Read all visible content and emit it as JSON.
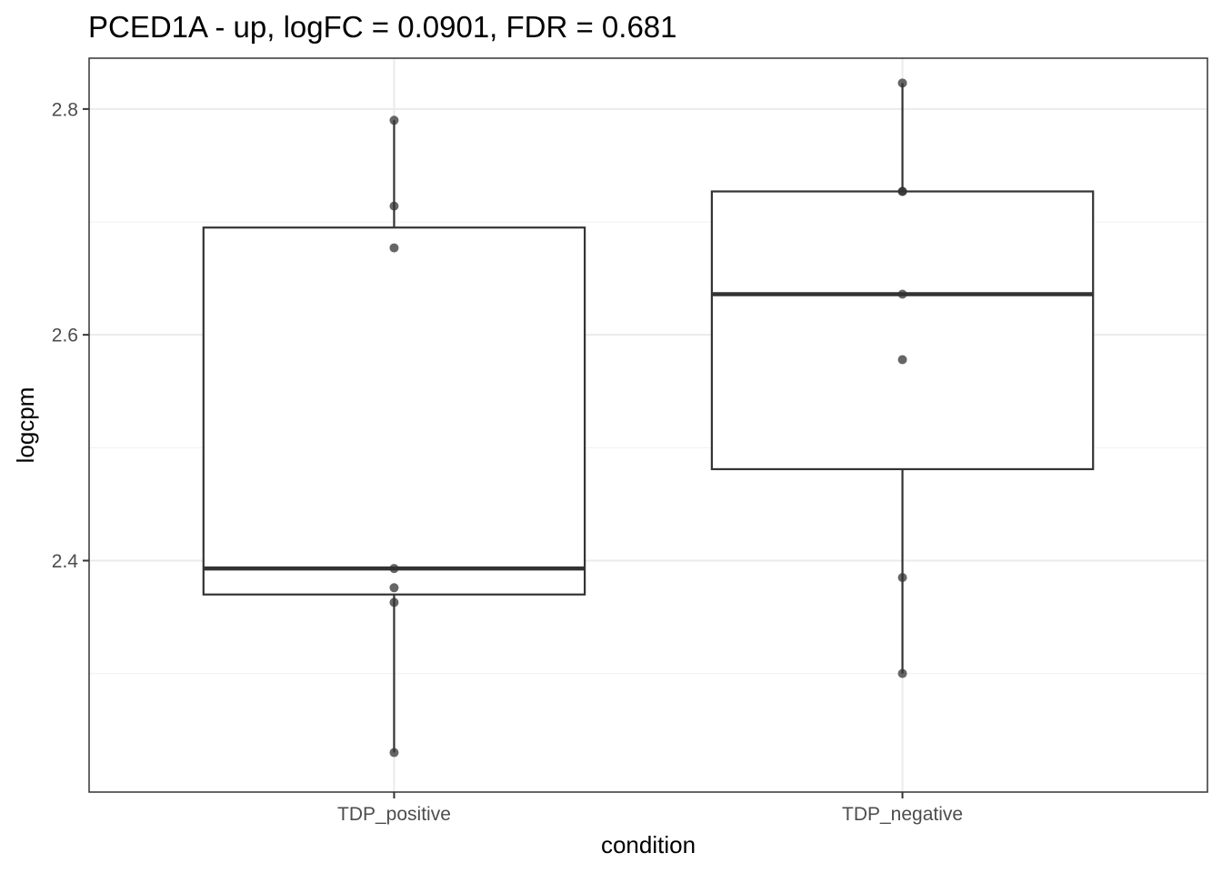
{
  "chart_data": {
    "type": "boxplot",
    "title": "PCED1A - up, logFC = 0.0901, FDR = 0.681",
    "xlabel": "condition",
    "ylabel": "logcpm",
    "categories": [
      "TDP_positive",
      "TDP_negative"
    ],
    "ylim": [
      2.195,
      2.845
    ],
    "yticks": [
      2.4,
      2.6,
      2.8
    ],
    "grid": true,
    "boxes": [
      {
        "category": "TDP_positive",
        "whisker_low": 2.23,
        "q1": 2.37,
        "median": 2.393,
        "q3": 2.695,
        "whisker_high": 2.79
      },
      {
        "category": "TDP_negative",
        "whisker_low": 2.3,
        "q1": 2.481,
        "median": 2.636,
        "q3": 2.727,
        "whisker_high": 2.823
      }
    ],
    "points": [
      {
        "category": "TDP_positive",
        "y": 2.79
      },
      {
        "category": "TDP_positive",
        "y": 2.714
      },
      {
        "category": "TDP_positive",
        "y": 2.677
      },
      {
        "category": "TDP_positive",
        "y": 2.393
      },
      {
        "category": "TDP_positive",
        "y": 2.376
      },
      {
        "category": "TDP_positive",
        "y": 2.363
      },
      {
        "category": "TDP_positive",
        "y": 2.23
      },
      {
        "category": "TDP_negative",
        "y": 2.823
      },
      {
        "category": "TDP_negative",
        "y": 2.727
      },
      {
        "category": "TDP_negative",
        "y": 2.727
      },
      {
        "category": "TDP_negative",
        "y": 2.636
      },
      {
        "category": "TDP_negative",
        "y": 2.578
      },
      {
        "category": "TDP_negative",
        "y": 2.385
      },
      {
        "category": "TDP_negative",
        "y": 2.3
      }
    ],
    "colors": {
      "box": "#333333",
      "point": "#333333",
      "grid_major": "#ebebeb",
      "grid_minor": "#f3f3f3",
      "panel_border": "#333333"
    }
  }
}
